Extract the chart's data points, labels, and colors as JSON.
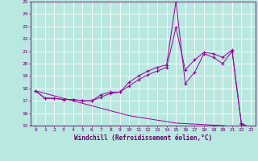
{
  "xlabel": "Windchill (Refroidissement éolien,°C)",
  "background_color": "#b8e8e0",
  "grid_color": "#ffffff",
  "line_color": "#990099",
  "xlim": [
    -0.5,
    23.5
  ],
  "ylim": [
    15,
    25
  ],
  "yticks": [
    15,
    16,
    17,
    18,
    19,
    20,
    21,
    22,
    23,
    24,
    25
  ],
  "xticks": [
    0,
    1,
    2,
    3,
    4,
    5,
    6,
    7,
    8,
    9,
    10,
    11,
    12,
    13,
    14,
    15,
    16,
    17,
    18,
    19,
    20,
    21,
    22,
    23
  ],
  "series1_x": [
    0,
    1,
    2,
    3,
    4,
    5,
    6,
    7,
    8,
    9,
    10,
    11,
    12,
    13,
    14,
    15,
    16,
    17,
    18,
    19,
    20,
    21,
    22,
    23
  ],
  "series1_y": [
    17.8,
    17.2,
    17.2,
    17.1,
    17.1,
    17.0,
    17.0,
    17.5,
    17.7,
    17.7,
    18.5,
    19.0,
    19.4,
    19.7,
    19.9,
    25.0,
    18.4,
    19.3,
    20.8,
    20.5,
    20.0,
    21.0,
    15.1,
    14.8
  ],
  "series2_x": [
    0,
    1,
    2,
    3,
    4,
    5,
    6,
    7,
    8,
    9,
    10,
    11,
    12,
    13,
    14,
    15,
    16,
    17,
    18,
    19,
    20,
    21,
    22,
    23
  ],
  "series2_y": [
    17.8,
    17.2,
    17.2,
    17.1,
    17.1,
    17.0,
    17.0,
    17.3,
    17.6,
    17.7,
    18.2,
    18.7,
    19.1,
    19.4,
    19.7,
    22.9,
    19.5,
    20.3,
    20.9,
    20.8,
    20.5,
    21.1,
    15.2,
    14.8
  ],
  "series3_x": [
    0,
    5,
    10,
    15,
    20,
    23
  ],
  "series3_y": [
    17.8,
    16.8,
    15.8,
    15.2,
    15.0,
    14.8
  ]
}
